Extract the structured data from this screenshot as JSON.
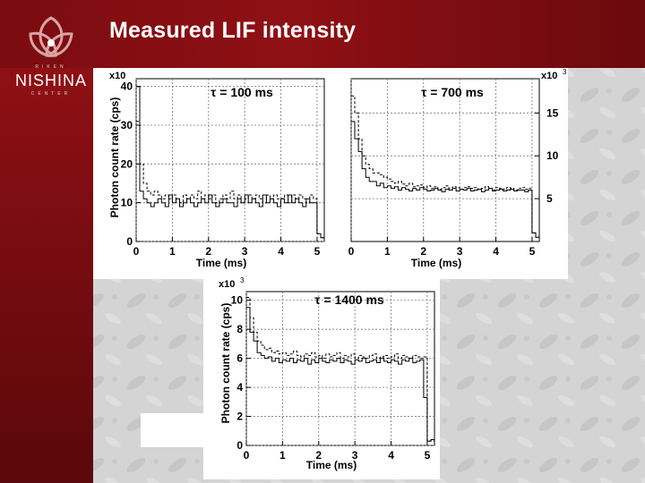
{
  "slide": {
    "title": "Measured LIF intensity",
    "logo_top": "RIKEN",
    "logo_name": "NISHINA",
    "logo_bottom": "CENTER",
    "colors": {
      "header": "#8e1014",
      "background": "#d2d2d2",
      "plot_line": "#000000"
    }
  },
  "chart_data": [
    {
      "type": "line",
      "annotation": "τ = 100 ms",
      "xlabel": "Time (ms)",
      "ylabel": "Photon count rate (cps)",
      "y_multiplier": "x10",
      "xlim": [
        0,
        5.2
      ],
      "ylim": [
        0,
        42
      ],
      "x_ticks": [
        0,
        1,
        2,
        3,
        4,
        5
      ],
      "y_ticks": [
        0,
        10,
        20,
        30,
        40
      ],
      "grid": true,
      "series": [
        {
          "x": [
            0.0,
            0.1,
            0.2,
            0.3,
            0.4,
            0.5,
            0.6,
            0.7,
            0.8,
            0.9,
            1.0,
            1.1,
            1.2,
            1.3,
            1.4,
            1.5,
            1.6,
            1.7,
            1.8,
            1.9,
            2.0,
            2.1,
            2.2,
            2.3,
            2.4,
            2.5,
            2.6,
            2.7,
            2.8,
            2.9,
            3.0,
            3.1,
            3.2,
            3.3,
            3.4,
            3.5,
            3.6,
            3.7,
            3.8,
            3.9,
            4.0,
            4.1,
            4.2,
            4.3,
            4.4,
            4.5,
            4.6,
            4.7,
            4.8,
            4.9,
            5.0,
            5.1
          ],
          "y": [
            40,
            13,
            11,
            10,
            9,
            10,
            11,
            10,
            9,
            12,
            10,
            11,
            9,
            10,
            11,
            10,
            9,
            10,
            11,
            10,
            12,
            10,
            9,
            10,
            11,
            10,
            10,
            9,
            11,
            10,
            12,
            10,
            11,
            10,
            9,
            12,
            10,
            11,
            10,
            9,
            11,
            10,
            12,
            10,
            11,
            10,
            9,
            11,
            10,
            10,
            2,
            1
          ]
        },
        {
          "x": [
            0.0,
            0.1,
            0.2,
            0.3,
            0.4,
            0.5,
            0.6,
            0.7,
            0.8,
            0.9,
            1.0,
            1.1,
            1.2,
            1.3,
            1.4,
            1.5,
            1.6,
            1.7,
            1.8,
            1.9,
            2.0,
            2.1,
            2.2,
            2.3,
            2.4,
            2.5,
            2.6,
            2.7,
            2.8,
            2.9,
            3.0,
            3.1,
            3.2,
            3.3,
            3.4,
            3.5,
            3.6,
            3.7,
            3.8,
            3.9,
            4.0,
            4.1,
            4.2,
            4.3,
            4.4,
            4.5,
            4.6,
            4.7,
            4.8,
            4.9,
            5.0,
            5.1
          ],
          "y": [
            31,
            20,
            15,
            13,
            12,
            13,
            12,
            11,
            12,
            11,
            12,
            11,
            10,
            12,
            11,
            12,
            11,
            13,
            11,
            12,
            11,
            12,
            10,
            11,
            12,
            11,
            13,
            11,
            12,
            10,
            11,
            12,
            11,
            12,
            11,
            10,
            12,
            11,
            12,
            11,
            11,
            12,
            10,
            12,
            11,
            12,
            11,
            10,
            12,
            11,
            2,
            1
          ]
        }
      ]
    },
    {
      "type": "line",
      "annotation": "τ = 700 ms",
      "xlabel": "Time (ms)",
      "ylabel": "",
      "y_multiplier": "x10",
      "y_multiplier_exp": "3",
      "xlim": [
        0,
        5.2
      ],
      "ylim": [
        0,
        19
      ],
      "x_ticks": [
        0,
        1,
        2,
        3,
        4,
        5
      ],
      "y_ticks": [
        5,
        10,
        15
      ],
      "y_axis_side": "right",
      "grid": true,
      "series": [
        {
          "x": [
            0.0,
            0.1,
            0.2,
            0.3,
            0.4,
            0.5,
            0.6,
            0.7,
            0.8,
            0.9,
            1.0,
            1.1,
            1.2,
            1.3,
            1.4,
            1.5,
            1.6,
            1.7,
            1.8,
            1.9,
            2.0,
            2.1,
            2.2,
            2.3,
            2.4,
            2.5,
            2.6,
            2.7,
            2.8,
            2.9,
            3.0,
            3.1,
            3.2,
            3.3,
            3.4,
            3.5,
            3.6,
            3.7,
            3.8,
            3.9,
            4.0,
            4.1,
            4.2,
            4.3,
            4.4,
            4.5,
            4.6,
            4.7,
            4.8,
            4.9,
            5.0,
            5.1
          ],
          "y": [
            14,
            12,
            10.5,
            8.5,
            7.5,
            7,
            7,
            6.5,
            6.8,
            6.3,
            6.5,
            6.2,
            6.4,
            6.0,
            6.3,
            6.1,
            5.9,
            6.2,
            6.0,
            6.3,
            6.1,
            5.9,
            6.0,
            6.2,
            6.0,
            5.8,
            6.1,
            6.0,
            6.2,
            5.9,
            6.1,
            6.0,
            6.2,
            5.9,
            6.0,
            6.1,
            5.8,
            6.0,
            6.2,
            5.9,
            6.0,
            6.1,
            5.9,
            6.0,
            6.1,
            5.9,
            6.0,
            6.0,
            5.8,
            6.0,
            1,
            0.5
          ]
        },
        {
          "x": [
            0.0,
            0.1,
            0.2,
            0.3,
            0.4,
            0.5,
            0.6,
            0.7,
            0.8,
            0.9,
            1.0,
            1.1,
            1.2,
            1.3,
            1.4,
            1.5,
            1.6,
            1.7,
            1.8,
            1.9,
            2.0,
            2.1,
            2.2,
            2.3,
            2.4,
            2.5,
            2.6,
            2.7,
            2.8,
            2.9,
            3.0,
            3.1,
            3.2,
            3.3,
            3.4,
            3.5,
            3.6,
            3.7,
            3.8,
            3.9,
            4.0,
            4.1,
            4.2,
            4.3,
            4.4,
            4.5,
            4.6,
            4.7,
            4.8,
            4.9,
            5.0,
            5.1
          ],
          "y": [
            17,
            15,
            12,
            10,
            9,
            8.5,
            8,
            8,
            7.8,
            7.5,
            7.3,
            7.0,
            6.8,
            7.0,
            6.7,
            6.5,
            6.8,
            6.4,
            6.5,
            6.6,
            6.3,
            6.5,
            6.2,
            6.4,
            6.1,
            6.3,
            6.5,
            6.2,
            6.4,
            6.3,
            6.1,
            6.3,
            6.4,
            6.2,
            6.3,
            6.1,
            6.2,
            6.4,
            6.2,
            6.0,
            6.3,
            6.2,
            6.1,
            6.3,
            6.2,
            6.0,
            6.2,
            6.3,
            6.1,
            6.2,
            1,
            0.5
          ]
        }
      ]
    },
    {
      "type": "line",
      "annotation": "τ = 1400 ms",
      "xlabel": "Time (ms)",
      "ylabel": "Photon count rate (cps)",
      "y_multiplier": "x10",
      "y_multiplier_exp": "3",
      "xlim": [
        0,
        5.2
      ],
      "ylim": [
        0,
        10.6
      ],
      "x_ticks": [
        0,
        1,
        2,
        3,
        4,
        5
      ],
      "y_ticks": [
        0,
        2,
        4,
        6,
        8,
        10
      ],
      "grid": true,
      "series": [
        {
          "x": [
            0.0,
            0.1,
            0.2,
            0.3,
            0.4,
            0.5,
            0.6,
            0.7,
            0.8,
            0.9,
            1.0,
            1.1,
            1.2,
            1.3,
            1.4,
            1.5,
            1.6,
            1.7,
            1.8,
            1.9,
            2.0,
            2.1,
            2.2,
            2.3,
            2.4,
            2.5,
            2.6,
            2.7,
            2.8,
            2.9,
            3.0,
            3.1,
            3.2,
            3.3,
            3.4,
            3.5,
            3.6,
            3.7,
            3.8,
            3.9,
            4.0,
            4.1,
            4.2,
            4.3,
            4.4,
            4.5,
            4.6,
            4.7,
            4.8,
            4.9,
            5.0,
            5.1
          ],
          "y": [
            9.5,
            7.8,
            7.2,
            6.4,
            6.2,
            6.0,
            6.1,
            5.8,
            6.0,
            5.7,
            5.9,
            5.8,
            6.0,
            5.7,
            5.9,
            5.8,
            6.0,
            5.6,
            5.9,
            5.7,
            6.0,
            5.8,
            5.7,
            5.9,
            5.8,
            6.0,
            5.7,
            5.9,
            5.8,
            5.6,
            5.9,
            5.8,
            6.0,
            5.7,
            5.8,
            5.9,
            5.7,
            6.0,
            5.8,
            5.7,
            5.9,
            5.8,
            5.6,
            5.9,
            5.8,
            6.0,
            5.7,
            5.8,
            5.9,
            3.3,
            0.3,
            0.4
          ]
        },
        {
          "x": [
            0.0,
            0.1,
            0.2,
            0.3,
            0.4,
            0.5,
            0.6,
            0.7,
            0.8,
            0.9,
            1.0,
            1.1,
            1.2,
            1.3,
            1.4,
            1.5,
            1.6,
            1.7,
            1.8,
            1.9,
            2.0,
            2.1,
            2.2,
            2.3,
            2.4,
            2.5,
            2.6,
            2.7,
            2.8,
            2.9,
            3.0,
            3.1,
            3.2,
            3.3,
            3.4,
            3.5,
            3.6,
            3.7,
            3.8,
            3.9,
            4.0,
            4.1,
            4.2,
            4.3,
            4.4,
            4.5,
            4.6,
            4.7,
            4.8,
            4.9,
            5.0,
            5.1
          ],
          "y": [
            10.2,
            8.8,
            7.8,
            7.2,
            6.9,
            6.6,
            6.7,
            6.4,
            6.5,
            6.3,
            6.4,
            6.2,
            6.3,
            6.5,
            6.2,
            6.1,
            6.3,
            6.2,
            6.4,
            6.1,
            6.2,
            6.0,
            6.3,
            6.1,
            6.2,
            6.4,
            6.0,
            6.2,
            6.1,
            6.3,
            6.0,
            6.2,
            6.1,
            6.0,
            6.2,
            6.3,
            6.0,
            6.1,
            6.2,
            6.0,
            6.1,
            6.3,
            6.0,
            6.2,
            6.1,
            6.0,
            6.2,
            6.1,
            6.0,
            6.1,
            0.3,
            0.3
          ]
        }
      ]
    }
  ]
}
